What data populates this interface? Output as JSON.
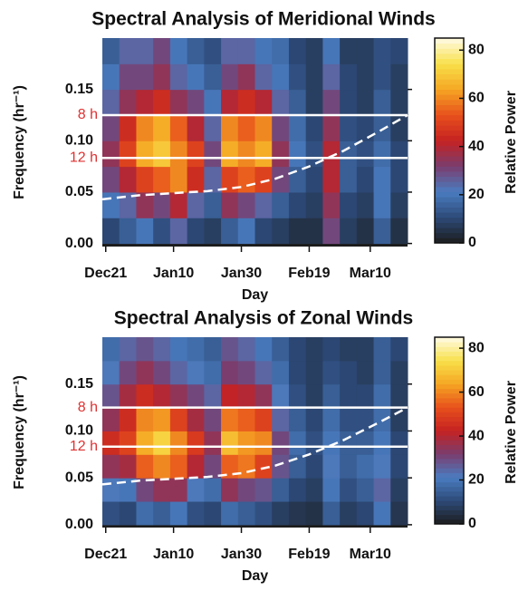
{
  "chart_data": [
    {
      "type": "heatmap",
      "title": "Spectral Analysis of Meridional Winds",
      "x_label": "Day",
      "y_label": "Frequency (hr⁻¹)",
      "colorbar_label": "Relative Power",
      "xlim": [
        -1,
        89
      ],
      "xticks": [
        {
          "value": 0,
          "label": "Dec21"
        },
        {
          "value": 20,
          "label": "Jan10"
        },
        {
          "value": 40,
          "label": "Jan30"
        },
        {
          "value": 60,
          "label": "Feb19"
        },
        {
          "value": 78,
          "label": "Mar10"
        }
      ],
      "ylim": [
        -0.003,
        0.2
      ],
      "yticks": [
        {
          "value": 0,
          "label": "0.00"
        },
        0.05,
        {
          "value": 0.1,
          "label": "0.10"
        },
        0.15
      ],
      "clim": [
        0,
        85
      ],
      "cticks": [
        0,
        20,
        40,
        60,
        80
      ],
      "colormap": [
        "#1c1c1c",
        "#2d4a78",
        "#4a7cc0",
        "#7a3d6e",
        "#c42222",
        "#e8501c",
        "#f5a623",
        "#f8e04a",
        "#fffbe6"
      ],
      "xbins": [
        -1,
        4,
        9,
        14,
        19,
        24,
        29,
        34,
        39,
        44,
        49,
        54,
        59,
        64,
        69,
        74,
        79,
        84,
        89
      ],
      "ybins": [
        0,
        0.025,
        0.05,
        0.075,
        0.1,
        0.125,
        0.15,
        0.175,
        0.2
      ],
      "z": [
        [
          10,
          15,
          20,
          12,
          25,
          10,
          8,
          15,
          20,
          10,
          8,
          5,
          5,
          30,
          8,
          5,
          15,
          5
        ],
        [
          20,
          25,
          35,
          30,
          40,
          25,
          15,
          35,
          30,
          25,
          15,
          10,
          8,
          35,
          10,
          8,
          20,
          8
        ],
        [
          30,
          40,
          50,
          55,
          60,
          45,
          25,
          50,
          55,
          50,
          30,
          15,
          10,
          40,
          15,
          10,
          20,
          10
        ],
        [
          35,
          50,
          65,
          70,
          60,
          50,
          30,
          65,
          60,
          65,
          35,
          20,
          12,
          40,
          15,
          12,
          18,
          10
        ],
        [
          30,
          45,
          60,
          65,
          55,
          40,
          25,
          60,
          55,
          60,
          30,
          18,
          10,
          35,
          12,
          10,
          15,
          8
        ],
        [
          25,
          35,
          40,
          45,
          35,
          30,
          20,
          40,
          45,
          40,
          25,
          15,
          8,
          30,
          10,
          8,
          15,
          8
        ],
        [
          20,
          30,
          30,
          35,
          25,
          20,
          15,
          30,
          35,
          25,
          20,
          12,
          8,
          25,
          10,
          8,
          12,
          8
        ],
        [
          15,
          25,
          25,
          30,
          20,
          15,
          12,
          25,
          25,
          20,
          18,
          10,
          8,
          20,
          8,
          8,
          12,
          10
        ]
      ],
      "annotations": [
        {
          "text": "8 h",
          "y": 0.125
        },
        {
          "text": "12 h",
          "y": 0.0833
        }
      ],
      "curve": {
        "x": [
          -1,
          10,
          20,
          30,
          40,
          50,
          60,
          70,
          80,
          89
        ],
        "y": [
          0.043,
          0.047,
          0.049,
          0.051,
          0.055,
          0.063,
          0.075,
          0.09,
          0.108,
          0.125
        ]
      }
    },
    {
      "type": "heatmap",
      "title": "Spectral Analysis of Zonal Winds",
      "x_label": "Day",
      "y_label": "Frequency (hr⁻¹)",
      "colorbar_label": "Relative Power",
      "xlim": [
        -1,
        89
      ],
      "xticks": [
        {
          "value": 0,
          "label": "Dec21"
        },
        {
          "value": 20,
          "label": "Jan10"
        },
        {
          "value": 40,
          "label": "Jan30"
        },
        {
          "value": 60,
          "label": "Feb19"
        },
        {
          "value": 78,
          "label": "Mar10"
        }
      ],
      "ylim": [
        -0.003,
        0.2
      ],
      "yticks": [
        {
          "value": 0,
          "label": "0.00"
        },
        0.05,
        {
          "value": 0.1,
          "label": "0.10"
        },
        0.15
      ],
      "clim": [
        0,
        85
      ],
      "cticks": [
        0,
        20,
        40,
        60,
        80
      ],
      "colormap": [
        "#1c1c1c",
        "#2d4a78",
        "#4a7cc0",
        "#7a3d6e",
        "#c42222",
        "#e8501c",
        "#f5a623",
        "#f8e04a",
        "#fffbe6"
      ],
      "xbins": [
        -1,
        4,
        9,
        14,
        19,
        24,
        29,
        34,
        39,
        44,
        49,
        54,
        59,
        64,
        69,
        74,
        79,
        84,
        89
      ],
      "ybins": [
        0,
        0.025,
        0.05,
        0.075,
        0.1,
        0.125,
        0.15,
        0.175,
        0.2
      ],
      "z": [
        [
          12,
          10,
          18,
          15,
          20,
          12,
          10,
          18,
          15,
          12,
          8,
          6,
          5,
          15,
          8,
          10,
          20,
          6
        ],
        [
          22,
          20,
          30,
          35,
          35,
          22,
          18,
          35,
          30,
          28,
          15,
          10,
          8,
          20,
          12,
          15,
          25,
          8
        ],
        [
          35,
          38,
          55,
          60,
          55,
          40,
          30,
          55,
          58,
          50,
          28,
          15,
          10,
          22,
          15,
          18,
          22,
          10
        ],
        [
          45,
          50,
          65,
          72,
          60,
          48,
          35,
          68,
          62,
          60,
          30,
          18,
          12,
          20,
          15,
          15,
          20,
          10
        ],
        [
          35,
          45,
          60,
          62,
          50,
          38,
          30,
          58,
          55,
          50,
          25,
          15,
          10,
          18,
          12,
          12,
          18,
          8
        ],
        [
          28,
          38,
          45,
          40,
          35,
          30,
          25,
          42,
          40,
          35,
          22,
          12,
          8,
          15,
          10,
          10,
          18,
          8
        ],
        [
          22,
          30,
          35,
          30,
          25,
          22,
          18,
          32,
          30,
          25,
          18,
          10,
          8,
          12,
          10,
          8,
          15,
          8
        ],
        [
          18,
          25,
          28,
          25,
          20,
          18,
          15,
          28,
          25,
          20,
          15,
          10,
          8,
          10,
          8,
          8,
          15,
          10
        ]
      ],
      "annotations": [
        {
          "text": "8 h",
          "y": 0.125
        },
        {
          "text": "12 h",
          "y": 0.0833
        }
      ],
      "curve": {
        "x": [
          -1,
          10,
          20,
          30,
          40,
          50,
          60,
          70,
          80,
          89
        ],
        "y": [
          0.043,
          0.047,
          0.049,
          0.051,
          0.055,
          0.063,
          0.075,
          0.09,
          0.108,
          0.125
        ]
      }
    }
  ]
}
